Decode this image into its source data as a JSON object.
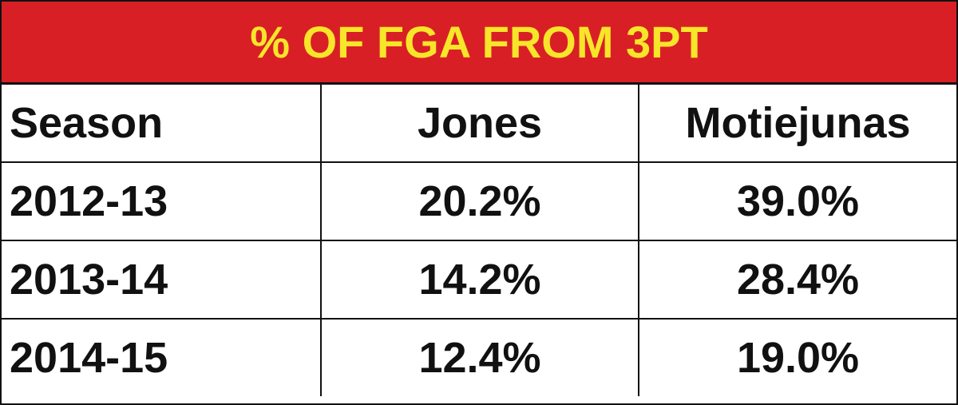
{
  "header": {
    "title": "% OF FGA FROM 3PT"
  },
  "table": {
    "columns": [
      "Season",
      "Jones",
      "Motiejunas"
    ],
    "rows": [
      [
        "2012-13",
        "20.2%",
        "39.0%"
      ],
      [
        "2013-14",
        "14.2%",
        "28.4%"
      ],
      [
        "2014-15",
        "12.4%",
        "19.0%"
      ]
    ]
  }
}
